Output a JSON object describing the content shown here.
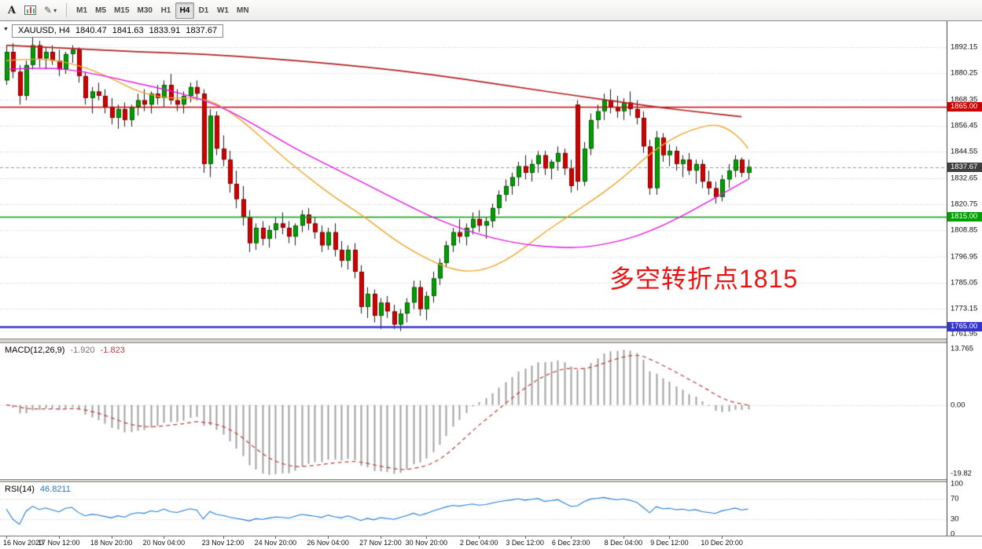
{
  "toolbar": {
    "tools": [
      {
        "id": "text-tool",
        "label": "A"
      },
      {
        "id": "chart-window",
        "icon": "chart-window-icon"
      },
      {
        "id": "draw-tools",
        "icon": "pencil-icon",
        "pencil_glyph": "✎",
        "caret": "▾"
      }
    ],
    "timeframes": [
      "M1",
      "M5",
      "M15",
      "M30",
      "H1",
      "H4",
      "D1",
      "W1",
      "MN"
    ],
    "active_timeframe": "H4"
  },
  "info": {
    "collapse_icon": "▼",
    "symbol_tf": "XAUUSD, H4",
    "open": "1840.47",
    "high": "1841.63",
    "low": "1833.91",
    "close": "1837.67"
  },
  "annotation": {
    "text": "多空转折点1815",
    "color": "#E81414"
  },
  "macd_panel": {
    "title": "MACD(12,26,9)",
    "main_value": "-1.920",
    "signal_value": "-1.823",
    "axis_labels": {
      "max": "13.765",
      "zero": "0.00",
      "min": "-19.82"
    },
    "bar_color": "#A0A0A0",
    "signal_color": "#C03A3A"
  },
  "rsi_panel": {
    "title": "RSI(14)",
    "value": "46.8211",
    "axis_labels": [
      "100",
      "70",
      "30",
      "0"
    ],
    "levels": [
      70,
      30
    ],
    "line_color": "#1F7BD4"
  },
  "price_axis": {
    "gridline_labels": [
      "1892.15",
      "1880.25",
      "1868.35",
      "1856.45",
      "1844.55",
      "1832.65",
      "1820.75",
      "1808.85",
      "1796.95",
      "1785.05",
      "1773.15"
    ],
    "edge_label": "1761.95"
  },
  "chart_data": {
    "type": "candlestick",
    "symbol": "XAUUSD",
    "timeframe": "H4",
    "up_color": "#00A000",
    "down_color": "#D40000",
    "price_gridlines": [
      1892.15,
      1880.25,
      1868.35,
      1856.45,
      1844.55,
      1832.65,
      1820.75,
      1808.85,
      1796.95,
      1785.05,
      1773.15
    ],
    "hlines": [
      {
        "price": 1865.0,
        "label": "1865.00",
        "color": "#CC0000",
        "width": 1.6
      },
      {
        "price": 1815.0,
        "label": "1815.00",
        "color": "#00A000",
        "width": 1.6
      },
      {
        "price": 1765.0,
        "label": "1765.00",
        "color": "#3535CD",
        "width": 2.4
      }
    ],
    "current_price": {
      "price": 1837.67,
      "label": "1837.67",
      "badge_color": "#3F3F3F"
    },
    "x_ticks": [
      [
        0,
        "16 Nov 2020"
      ],
      [
        8,
        "17 Nov 12:00"
      ],
      [
        16,
        "18 Nov 20:00"
      ],
      [
        24,
        "20 Nov 04:00"
      ],
      [
        33,
        "23 Nov 12:00"
      ],
      [
        41,
        "24 Nov 20:00"
      ],
      [
        49,
        "26 Nov 04:00"
      ],
      [
        57,
        "27 Nov 12:00"
      ],
      [
        64,
        "30 Nov 20:00"
      ],
      [
        72,
        "2 Dec 04:00"
      ],
      [
        79,
        "3 Dec 12:00"
      ],
      [
        86,
        "6 Dec 23:00"
      ],
      [
        94,
        "8 Dec 04:00"
      ],
      [
        101,
        "9 Dec 12:00"
      ],
      [
        109,
        "10 Dec 20:00"
      ]
    ],
    "candles": [
      [
        1877,
        1893,
        1875,
        1890
      ],
      [
        1890,
        1894,
        1878,
        1881
      ],
      [
        1881,
        1884,
        1866,
        1870
      ],
      [
        1870,
        1886,
        1868,
        1884
      ],
      [
        1884,
        1897,
        1882,
        1893
      ],
      [
        1893,
        1895,
        1883,
        1887
      ],
      [
        1887,
        1892,
        1882,
        1890
      ],
      [
        1890,
        1893,
        1884,
        1886
      ],
      [
        1886,
        1891,
        1879,
        1882
      ],
      [
        1882,
        1890,
        1880,
        1889
      ],
      [
        1889,
        1893,
        1885,
        1891
      ],
      [
        1891,
        1892,
        1876,
        1879
      ],
      [
        1879,
        1881,
        1866,
        1869
      ],
      [
        1869,
        1874,
        1862,
        1872
      ],
      [
        1872,
        1876,
        1868,
        1870
      ],
      [
        1870,
        1873,
        1862,
        1865
      ],
      [
        1865,
        1869,
        1857,
        1860
      ],
      [
        1860,
        1866,
        1855,
        1864
      ],
      [
        1864,
        1867,
        1856,
        1859
      ],
      [
        1859,
        1866,
        1856,
        1865
      ],
      [
        1865,
        1871,
        1861,
        1868
      ],
      [
        1868,
        1873,
        1863,
        1866
      ],
      [
        1866,
        1872,
        1862,
        1871
      ],
      [
        1871,
        1875,
        1866,
        1869
      ],
      [
        1869,
        1877,
        1865,
        1875
      ],
      [
        1875,
        1880,
        1866,
        1868
      ],
      [
        1868,
        1873,
        1863,
        1866
      ],
      [
        1866,
        1872,
        1862,
        1870
      ],
      [
        1870,
        1876,
        1867,
        1874
      ],
      [
        1874,
        1877,
        1868,
        1871
      ],
      [
        1871,
        1873,
        1835,
        1839
      ],
      [
        1839,
        1864,
        1833,
        1861
      ],
      [
        1861,
        1863,
        1843,
        1846
      ],
      [
        1846,
        1852,
        1838,
        1841
      ],
      [
        1841,
        1845,
        1826,
        1830
      ],
      [
        1830,
        1836,
        1819,
        1823
      ],
      [
        1823,
        1829,
        1811,
        1815
      ],
      [
        1815,
        1818,
        1799,
        1803
      ],
      [
        1803,
        1812,
        1800,
        1810
      ],
      [
        1810,
        1813,
        1802,
        1805
      ],
      [
        1805,
        1811,
        1801,
        1809
      ],
      [
        1809,
        1815,
        1805,
        1812
      ],
      [
        1812,
        1817,
        1807,
        1810
      ],
      [
        1810,
        1813,
        1803,
        1806
      ],
      [
        1806,
        1812,
        1802,
        1811
      ],
      [
        1811,
        1818,
        1808,
        1816
      ],
      [
        1816,
        1819,
        1809,
        1812
      ],
      [
        1812,
        1815,
        1805,
        1808
      ],
      [
        1808,
        1811,
        1799,
        1802
      ],
      [
        1802,
        1810,
        1800,
        1808
      ],
      [
        1808,
        1812,
        1797,
        1800
      ],
      [
        1800,
        1804,
        1792,
        1795
      ],
      [
        1795,
        1802,
        1791,
        1800
      ],
      [
        1800,
        1803,
        1787,
        1790
      ],
      [
        1790,
        1793,
        1771,
        1774
      ],
      [
        1774,
        1783,
        1769,
        1780
      ],
      [
        1780,
        1782,
        1767,
        1770
      ],
      [
        1770,
        1778,
        1764,
        1776
      ],
      [
        1776,
        1779,
        1769,
        1772
      ],
      [
        1772,
        1775,
        1764,
        1766
      ],
      [
        1766,
        1773,
        1763,
        1771
      ],
      [
        1771,
        1778,
        1767,
        1776
      ],
      [
        1776,
        1786,
        1773,
        1783
      ],
      [
        1783,
        1786,
        1770,
        1773
      ],
      [
        1773,
        1781,
        1768,
        1779
      ],
      [
        1779,
        1790,
        1776,
        1787
      ],
      [
        1787,
        1796,
        1784,
        1794
      ],
      [
        1794,
        1804,
        1792,
        1802
      ],
      [
        1802,
        1810,
        1799,
        1808
      ],
      [
        1808,
        1814,
        1803,
        1806
      ],
      [
        1806,
        1812,
        1802,
        1810
      ],
      [
        1810,
        1817,
        1807,
        1814
      ],
      [
        1814,
        1818,
        1808,
        1811
      ],
      [
        1811,
        1815,
        1805,
        1813
      ],
      [
        1813,
        1821,
        1810,
        1819
      ],
      [
        1819,
        1827,
        1816,
        1825
      ],
      [
        1825,
        1832,
        1822,
        1829
      ],
      [
        1829,
        1835,
        1825,
        1833
      ],
      [
        1833,
        1840,
        1829,
        1838
      ],
      [
        1838,
        1843,
        1832,
        1835
      ],
      [
        1835,
        1841,
        1831,
        1839
      ],
      [
        1839,
        1845,
        1835,
        1843
      ],
      [
        1843,
        1845,
        1834,
        1837
      ],
      [
        1837,
        1841,
        1832,
        1840
      ],
      [
        1840,
        1847,
        1836,
        1844
      ],
      [
        1844,
        1846,
        1834,
        1837
      ],
      [
        1837,
        1841,
        1826,
        1829
      ],
      [
        1866,
        1868,
        1827,
        1831
      ],
      [
        1831,
        1849,
        1829,
        1846
      ],
      [
        1846,
        1862,
        1843,
        1859
      ],
      [
        1859,
        1866,
        1855,
        1863
      ],
      [
        1863,
        1871,
        1859,
        1868
      ],
      [
        1868,
        1873,
        1862,
        1865
      ],
      [
        1865,
        1870,
        1860,
        1863
      ],
      [
        1863,
        1869,
        1859,
        1867
      ],
      [
        1867,
        1872,
        1861,
        1864
      ],
      [
        1864,
        1868,
        1857,
        1860
      ],
      [
        1860,
        1863,
        1844,
        1847
      ],
      [
        1847,
        1850,
        1825,
        1828
      ],
      [
        1828,
        1854,
        1825,
        1851
      ],
      [
        1851,
        1853,
        1840,
        1843
      ],
      [
        1843,
        1848,
        1838,
        1845
      ],
      [
        1845,
        1847,
        1836,
        1839
      ],
      [
        1839,
        1843,
        1833,
        1841
      ],
      [
        1841,
        1844,
        1834,
        1836
      ],
      [
        1836,
        1841,
        1830,
        1839
      ],
      [
        1839,
        1841,
        1828,
        1831
      ],
      [
        1831,
        1836,
        1825,
        1828
      ],
      [
        1828,
        1831,
        1821,
        1824
      ],
      [
        1824,
        1834,
        1822,
        1832
      ],
      [
        1832,
        1839,
        1828,
        1836
      ],
      [
        1836,
        1843,
        1833,
        1841
      ],
      [
        1841,
        1842,
        1833,
        1835
      ],
      [
        1835,
        1841,
        1832,
        1837.7
      ]
    ],
    "overlays": [
      {
        "name": "ma-medium-orange",
        "color": "#EEA52C",
        "width": 1.4,
        "points": [
          [
            0,
            1886
          ],
          [
            4,
            1887
          ],
          [
            8,
            1886
          ],
          [
            12,
            1883
          ],
          [
            16,
            1878
          ],
          [
            20,
            1872
          ],
          [
            24,
            1869
          ],
          [
            28,
            1869
          ],
          [
            31,
            1868
          ],
          [
            34,
            1863
          ],
          [
            37,
            1856
          ],
          [
            40,
            1848
          ],
          [
            43,
            1840
          ],
          [
            46,
            1833
          ],
          [
            49,
            1826
          ],
          [
            52,
            1820
          ],
          [
            55,
            1814
          ],
          [
            58,
            1807
          ],
          [
            61,
            1801
          ],
          [
            64,
            1796
          ],
          [
            67,
            1792
          ],
          [
            70,
            1790
          ],
          [
            73,
            1791
          ],
          [
            76,
            1795
          ],
          [
            79,
            1801
          ],
          [
            82,
            1808
          ],
          [
            85,
            1814
          ],
          [
            88,
            1820
          ],
          [
            91,
            1826
          ],
          [
            94,
            1833
          ],
          [
            97,
            1841
          ],
          [
            100,
            1848
          ],
          [
            103,
            1853
          ],
          [
            106,
            1856
          ],
          [
            108,
            1857
          ],
          [
            110,
            1855
          ],
          [
            112,
            1850
          ],
          [
            113,
            1846
          ]
        ]
      },
      {
        "name": "ma-slow-magenta",
        "color": "#E319E3",
        "width": 1.4,
        "points": [
          [
            0,
            1882
          ],
          [
            6,
            1883
          ],
          [
            12,
            1881
          ],
          [
            18,
            1877
          ],
          [
            24,
            1873
          ],
          [
            28,
            1870
          ],
          [
            32,
            1866
          ],
          [
            36,
            1860
          ],
          [
            40,
            1853
          ],
          [
            44,
            1846
          ],
          [
            48,
            1840
          ],
          [
            52,
            1834
          ],
          [
            56,
            1828
          ],
          [
            60,
            1822
          ],
          [
            64,
            1816
          ],
          [
            68,
            1811
          ],
          [
            72,
            1807
          ],
          [
            76,
            1804
          ],
          [
            80,
            1802
          ],
          [
            84,
            1801
          ],
          [
            88,
            1801
          ],
          [
            92,
            1803
          ],
          [
            96,
            1806
          ],
          [
            100,
            1811
          ],
          [
            104,
            1817
          ],
          [
            107,
            1822
          ],
          [
            110,
            1827
          ],
          [
            113,
            1832
          ]
        ]
      },
      {
        "name": "ma-long-darkred",
        "color": "#B22222",
        "width": 1.7,
        "points": [
          [
            0,
            1893
          ],
          [
            10,
            1891.5
          ],
          [
            20,
            1890
          ],
          [
            30,
            1889
          ],
          [
            40,
            1887
          ],
          [
            50,
            1884.5
          ],
          [
            60,
            1881.5
          ],
          [
            70,
            1877.5
          ],
          [
            80,
            1873
          ],
          [
            88,
            1869.5
          ],
          [
            94,
            1867
          ],
          [
            100,
            1864.5
          ],
          [
            106,
            1862.5
          ],
          [
            112,
            1860.5
          ]
        ]
      }
    ]
  }
}
